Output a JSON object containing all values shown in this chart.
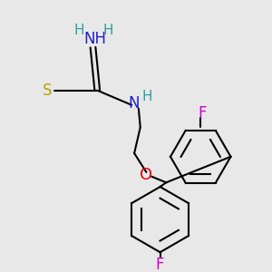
{
  "background_color": "#e8e8e8",
  "figsize": [
    3.0,
    3.0
  ],
  "dpi": 100,
  "colors": {
    "black": "#000000",
    "S": "#b8a000",
    "N": "#2020cc",
    "H": "#30a0a0",
    "O": "#dd0000",
    "F": "#cc00cc"
  }
}
